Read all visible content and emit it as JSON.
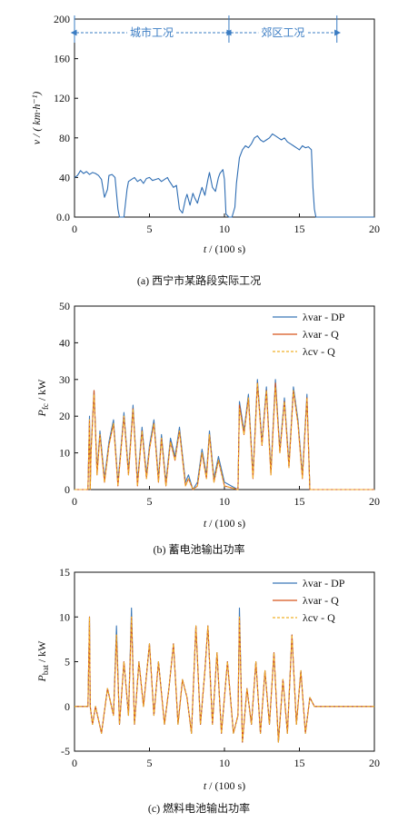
{
  "colors": {
    "speed": "#2e6db3",
    "dp": "#3b78b8",
    "var_q": "#d8531b",
    "cv_q": "#f0b129",
    "region_arrow": "#3a7cc3",
    "axis": "#111111"
  },
  "chart_data": [
    {
      "type": "line",
      "caption": "(a)  西宁市某路段实际工况",
      "xlabel": "t / (100 s)",
      "ylabel": "v / ( km·h⁻¹)",
      "xlim": [
        0,
        20
      ],
      "ylim": [
        0,
        200
      ],
      "x_ticks": [
        0,
        5,
        10,
        15,
        20
      ],
      "y_ticks": [
        "0.0",
        "40",
        "80",
        "120",
        "160",
        "200"
      ],
      "grid": false,
      "regions": [
        {
          "label": "城市工况",
          "x_start": 0,
          "x_end": 10.3
        },
        {
          "label": "郊区工况",
          "x_start": 10.3,
          "x_end": 17.5
        }
      ],
      "series": [
        {
          "x": [
            0,
            0.2,
            0.4,
            0.6,
            0.8,
            1.0,
            1.2,
            1.4,
            1.6,
            1.8,
            2.0,
            2.2,
            2.3,
            2.5,
            2.7,
            2.8,
            2.9,
            3.0,
            3.1,
            3.3,
            3.5,
            3.6,
            3.8,
            4.0,
            4.2,
            4.4,
            4.6,
            4.8,
            5.0,
            5.2,
            5.4,
            5.6,
            5.8,
            6.0,
            6.2,
            6.3,
            6.6,
            6.8,
            7.0,
            7.2,
            7.4,
            7.5,
            7.7,
            7.9,
            8.0,
            8.2,
            8.3,
            8.5,
            8.7,
            8.9,
            9.0,
            9.2,
            9.4,
            9.6,
            9.7,
            9.9,
            10.0,
            10.1,
            10.3,
            10.5,
            10.7,
            10.8,
            11.0,
            11.2,
            11.4,
            11.6,
            11.8,
            12.0,
            12.2,
            12.4,
            12.6,
            12.8,
            13.0,
            13.2,
            13.4,
            13.6,
            13.8,
            14.0,
            14.2,
            14.4,
            14.6,
            14.8,
            15.0,
            15.2,
            15.4,
            15.6,
            15.8,
            15.9,
            16.0,
            16.1,
            16.3,
            17.5,
            20
          ],
          "y": [
            40,
            42,
            47,
            44,
            46,
            43,
            45,
            44,
            42,
            38,
            20,
            28,
            42,
            43,
            40,
            24,
            8,
            0,
            0,
            0,
            28,
            36,
            38,
            40,
            36,
            38,
            34,
            39,
            40,
            37,
            38,
            39,
            36,
            38,
            40,
            37,
            30,
            32,
            8,
            4,
            18,
            23,
            12,
            24,
            20,
            14,
            20,
            30,
            22,
            38,
            45,
            30,
            26,
            40,
            44,
            48,
            38,
            3,
            0,
            0,
            10,
            34,
            60,
            68,
            72,
            70,
            74,
            80,
            82,
            78,
            76,
            78,
            80,
            84,
            82,
            80,
            78,
            80,
            76,
            74,
            72,
            70,
            68,
            72,
            70,
            71,
            68,
            30,
            8,
            0,
            0,
            0,
            0
          ]
        }
      ]
    },
    {
      "type": "line",
      "caption": "(b)  蓄电池输出功率",
      "xlabel": "t / (100 s)",
      "ylabel": "P_fc / kW",
      "xlim": [
        0,
        20
      ],
      "ylim": [
        0,
        50
      ],
      "x_ticks": [
        0,
        5,
        10,
        15,
        20
      ],
      "y_ticks": [
        "0",
        "10",
        "20",
        "30",
        "40",
        "50"
      ],
      "grid": false,
      "legend_position": "top-right",
      "legend": [
        "λvar - DP",
        "λvar - Q",
        "λcv - Q"
      ],
      "series": [
        {
          "name": "λvar - DP",
          "x": [
            0,
            0.9,
            1.0,
            1.05,
            1.1,
            1.3,
            1.5,
            1.7,
            2.0,
            2.3,
            2.6,
            2.9,
            3.3,
            3.6,
            3.9,
            4.2,
            4.5,
            4.8,
            5.0,
            5.3,
            5.6,
            5.8,
            6.1,
            6.4,
            6.7,
            7.0,
            7.4,
            7.6,
            7.9,
            8.2,
            8.5,
            8.8,
            9.0,
            9.3,
            9.6,
            10.0,
            10.9,
            11.0,
            11.3,
            11.6,
            11.9,
            12.2,
            12.5,
            12.8,
            13.1,
            13.4,
            13.7,
            14.0,
            14.3,
            14.6,
            14.9,
            15.2,
            15.5,
            15.7,
            20
          ],
          "y": [
            0,
            0,
            20,
            0,
            11,
            27,
            5,
            16,
            3,
            13,
            19,
            2,
            21,
            5,
            23,
            2,
            17,
            4,
            12,
            19,
            3,
            15,
            2,
            14,
            9,
            17,
            2,
            4,
            0,
            2,
            11,
            4,
            16,
            3,
            9,
            2,
            0,
            24,
            16,
            26,
            4,
            30,
            13,
            28,
            5,
            30,
            11,
            25,
            7,
            28,
            19,
            4,
            26,
            0,
            0
          ]
        },
        {
          "name": "λvar - Q",
          "x": [
            0,
            0.9,
            1.0,
            1.05,
            1.1,
            1.3,
            1.5,
            1.7,
            2.0,
            2.3,
            2.6,
            2.9,
            3.3,
            3.6,
            3.9,
            4.2,
            4.5,
            4.8,
            5.0,
            5.3,
            5.6,
            5.8,
            6.1,
            6.4,
            6.7,
            7.0,
            7.4,
            7.6,
            7.9,
            8.2,
            8.5,
            8.8,
            9.0,
            9.3,
            9.6,
            10.0,
            10.9,
            11.0,
            11.3,
            11.6,
            11.9,
            12.2,
            12.5,
            12.8,
            13.1,
            13.4,
            13.7,
            14.0,
            14.3,
            14.6,
            14.9,
            15.2,
            15.5,
            15.7,
            20
          ],
          "y": [
            0,
            0,
            19,
            0,
            10,
            27,
            4,
            15,
            2,
            12,
            18,
            1,
            20,
            4,
            22,
            1,
            16,
            3,
            11,
            18,
            2,
            14,
            1,
            13,
            8,
            16,
            1,
            3,
            0,
            1,
            10,
            3,
            15,
            2,
            8,
            1,
            0,
            23,
            15,
            25,
            3,
            29,
            12,
            27,
            4,
            29,
            10,
            24,
            6,
            27,
            18,
            3,
            25,
            0,
            0
          ]
        },
        {
          "name": "λcv - Q",
          "x": [
            0,
            0.9,
            1.0,
            1.05,
            1.1,
            1.3,
            1.5,
            1.7,
            2.0,
            2.3,
            2.6,
            2.9,
            3.3,
            3.6,
            3.9,
            4.2,
            4.5,
            4.8,
            5.0,
            5.3,
            5.6,
            5.8,
            6.1,
            6.4,
            6.7,
            7.0,
            7.4,
            7.6,
            7.9,
            8.2,
            8.5,
            8.8,
            9.0,
            9.3,
            9.6,
            10.0,
            10.9,
            11.0,
            11.3,
            11.6,
            11.9,
            12.2,
            12.5,
            12.8,
            13.1,
            13.4,
            13.7,
            14.0,
            14.3,
            14.6,
            14.9,
            15.2,
            15.5,
            15.7,
            20
          ],
          "y": [
            0,
            0,
            19,
            0,
            10,
            26,
            4,
            15,
            2,
            12,
            18,
            1,
            20,
            4,
            22,
            1,
            16,
            3,
            11,
            18,
            2,
            14,
            1,
            13,
            8,
            16,
            1,
            3,
            0,
            1,
            10,
            3,
            15,
            2,
            8,
            1,
            0,
            22,
            15,
            25,
            3,
            29,
            12,
            27,
            4,
            28,
            10,
            24,
            6,
            27,
            18,
            3,
            25,
            0,
            0
          ]
        }
      ]
    },
    {
      "type": "line",
      "caption": "(c)  燃料电池输出功率",
      "xlabel": "t / (100 s)",
      "ylabel": "P_bat / kW",
      "xlim": [
        0,
        20
      ],
      "ylim": [
        -5,
        15
      ],
      "x_ticks": [
        0,
        5,
        10,
        15,
        20
      ],
      "y_ticks": [
        "-5",
        "0",
        "5",
        "10",
        "15"
      ],
      "grid": false,
      "legend_position": "top-right",
      "legend": [
        "λvar - DP",
        "λvar - Q",
        "λcv - Q"
      ],
      "series": [
        {
          "name": "λvar - DP",
          "x": [
            0,
            0.9,
            1.0,
            1.05,
            1.2,
            1.4,
            1.8,
            2.2,
            2.6,
            2.8,
            3.0,
            3.3,
            3.6,
            3.8,
            4.0,
            4.3,
            4.6,
            5.0,
            5.3,
            5.6,
            6.0,
            6.3,
            6.6,
            6.9,
            7.2,
            7.5,
            7.8,
            8.1,
            8.4,
            8.7,
            8.9,
            9.2,
            9.5,
            9.8,
            10.2,
            10.6,
            10.9,
            11.0,
            11.2,
            11.5,
            11.8,
            12.1,
            12.4,
            12.7,
            13.0,
            13.3,
            13.6,
            13.9,
            14.2,
            14.5,
            14.8,
            15.1,
            15.4,
            15.7,
            16.0,
            20
          ],
          "y": [
            0,
            0,
            10,
            0,
            -2,
            0,
            -3,
            2,
            -1,
            9,
            -2,
            5,
            -1,
            11,
            -2,
            5,
            0,
            7,
            -1,
            5,
            -2,
            2,
            7,
            -2,
            3,
            1,
            -3,
            9,
            -2,
            4,
            9,
            -2,
            6,
            -3,
            5,
            -3,
            -1,
            11,
            -4,
            2,
            -2,
            5,
            -3,
            4,
            -2,
            6,
            -4,
            3,
            -3,
            8,
            -2,
            4,
            -3,
            1,
            0,
            0
          ]
        },
        {
          "name": "λvar - Q",
          "x": [
            0,
            0.9,
            1.0,
            1.05,
            1.2,
            1.4,
            1.8,
            2.2,
            2.6,
            2.8,
            3.0,
            3.3,
            3.6,
            3.8,
            4.0,
            4.3,
            4.6,
            5.0,
            5.3,
            5.6,
            6.0,
            6.3,
            6.6,
            6.9,
            7.2,
            7.5,
            7.8,
            8.1,
            8.4,
            8.7,
            8.9,
            9.2,
            9.5,
            9.8,
            10.2,
            10.6,
            10.9,
            11.0,
            11.2,
            11.5,
            11.8,
            12.1,
            12.4,
            12.7,
            13.0,
            13.3,
            13.6,
            13.9,
            14.2,
            14.5,
            14.8,
            15.1,
            15.4,
            15.7,
            16.0,
            20
          ],
          "y": [
            0,
            0,
            10,
            0,
            -2,
            0,
            -3,
            2,
            -1,
            8,
            -2,
            5,
            -1,
            10,
            -2,
            5,
            0,
            7,
            -1,
            5,
            -2,
            2,
            7,
            -2,
            3,
            1,
            -3,
            9,
            -2,
            4,
            9,
            -2,
            6,
            -3,
            5,
            -3,
            -1,
            10,
            -4,
            2,
            -2,
            5,
            -3,
            4,
            -2,
            6,
            -4,
            3,
            -3,
            8,
            -2,
            4,
            -3,
            1,
            0,
            0
          ]
        },
        {
          "name": "λcv - Q",
          "x": [
            0,
            0.9,
            1.0,
            1.05,
            1.2,
            1.4,
            1.8,
            2.2,
            2.6,
            2.8,
            3.0,
            3.3,
            3.6,
            3.8,
            4.0,
            4.3,
            4.6,
            5.0,
            5.3,
            5.6,
            6.0,
            6.3,
            6.6,
            6.9,
            7.2,
            7.5,
            7.8,
            8.1,
            8.4,
            8.7,
            8.9,
            9.2,
            9.5,
            9.8,
            10.2,
            10.6,
            10.9,
            11.0,
            11.2,
            11.5,
            11.8,
            12.1,
            12.4,
            12.7,
            13.0,
            13.3,
            13.6,
            13.9,
            14.2,
            14.5,
            14.8,
            15.1,
            15.4,
            15.7,
            16.0,
            20
          ],
          "y": [
            0,
            0,
            10,
            0,
            -2,
            0,
            -3,
            2,
            -1,
            8,
            -2,
            5,
            -1,
            10,
            -2,
            5,
            0,
            7,
            -1,
            5,
            -2,
            2,
            7,
            -2,
            3,
            1,
            -3,
            9,
            -2,
            4,
            9,
            -2,
            6,
            -3,
            5,
            -3,
            -1,
            10,
            -4,
            2,
            -2,
            5,
            -3,
            4,
            -2,
            6,
            -4,
            3,
            -3,
            8,
            -2,
            4,
            -3,
            1,
            0,
            0
          ]
        }
      ]
    }
  ]
}
